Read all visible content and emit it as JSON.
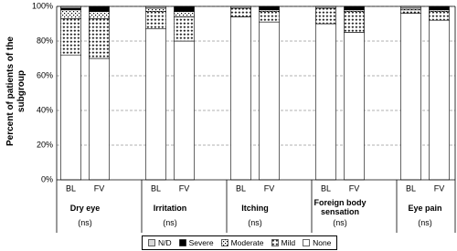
{
  "chart_data": {
    "type": "bar",
    "stacked": true,
    "y_label": "Percent of patients of the subgroup",
    "categories": [
      "BL",
      "FV",
      "BL",
      "FV",
      "BL",
      "FV",
      "BL",
      "FV",
      "BL",
      "FV"
    ],
    "groups": [
      {
        "name": "Dry eye",
        "note": "(ns)"
      },
      {
        "name": "Irritation",
        "note": "(ns)"
      },
      {
        "name": "Itching",
        "note": "(ns)"
      },
      {
        "name": "Foreign body sensation",
        "note": "(ns)"
      },
      {
        "name": "Eye pain",
        "note": "(ns)"
      }
    ],
    "series": [
      {
        "name": "None",
        "color": "#ffffff",
        "pattern": null,
        "values": [
          72,
          70,
          87,
          80,
          94,
          91,
          90,
          85,
          96,
          92
        ]
      },
      {
        "name": "Mild",
        "color": "#000000",
        "pattern": "plus",
        "values": [
          21,
          23,
          10,
          14,
          5,
          6,
          9,
          12,
          2,
          5
        ]
      },
      {
        "name": "Moderate",
        "color": "#000000",
        "pattern": "dots",
        "values": [
          5,
          4,
          2,
          3,
          0,
          1,
          0,
          1,
          1,
          1
        ]
      },
      {
        "name": "Severe",
        "color": "#000000",
        "pattern": null,
        "values": [
          1,
          3,
          0,
          3,
          0,
          2,
          0,
          2,
          0,
          2
        ]
      },
      {
        "name": "N/D",
        "color": "#d9d9d9",
        "pattern": null,
        "values": [
          1,
          0,
          1,
          0,
          1,
          0,
          1,
          0,
          1,
          0
        ]
      }
    ],
    "legend_order": [
      4,
      3,
      2,
      1,
      0
    ],
    "ylim": [
      0,
      100
    ],
    "yticks": [
      {
        "value": 0,
        "label": "0%"
      },
      {
        "value": 20,
        "label": "20%"
      },
      {
        "value": 40,
        "label": "40%"
      },
      {
        "value": 60,
        "label": "60%"
      },
      {
        "value": 80,
        "label": "80%"
      },
      {
        "value": 100,
        "label": "100%"
      }
    ],
    "grid": true
  }
}
